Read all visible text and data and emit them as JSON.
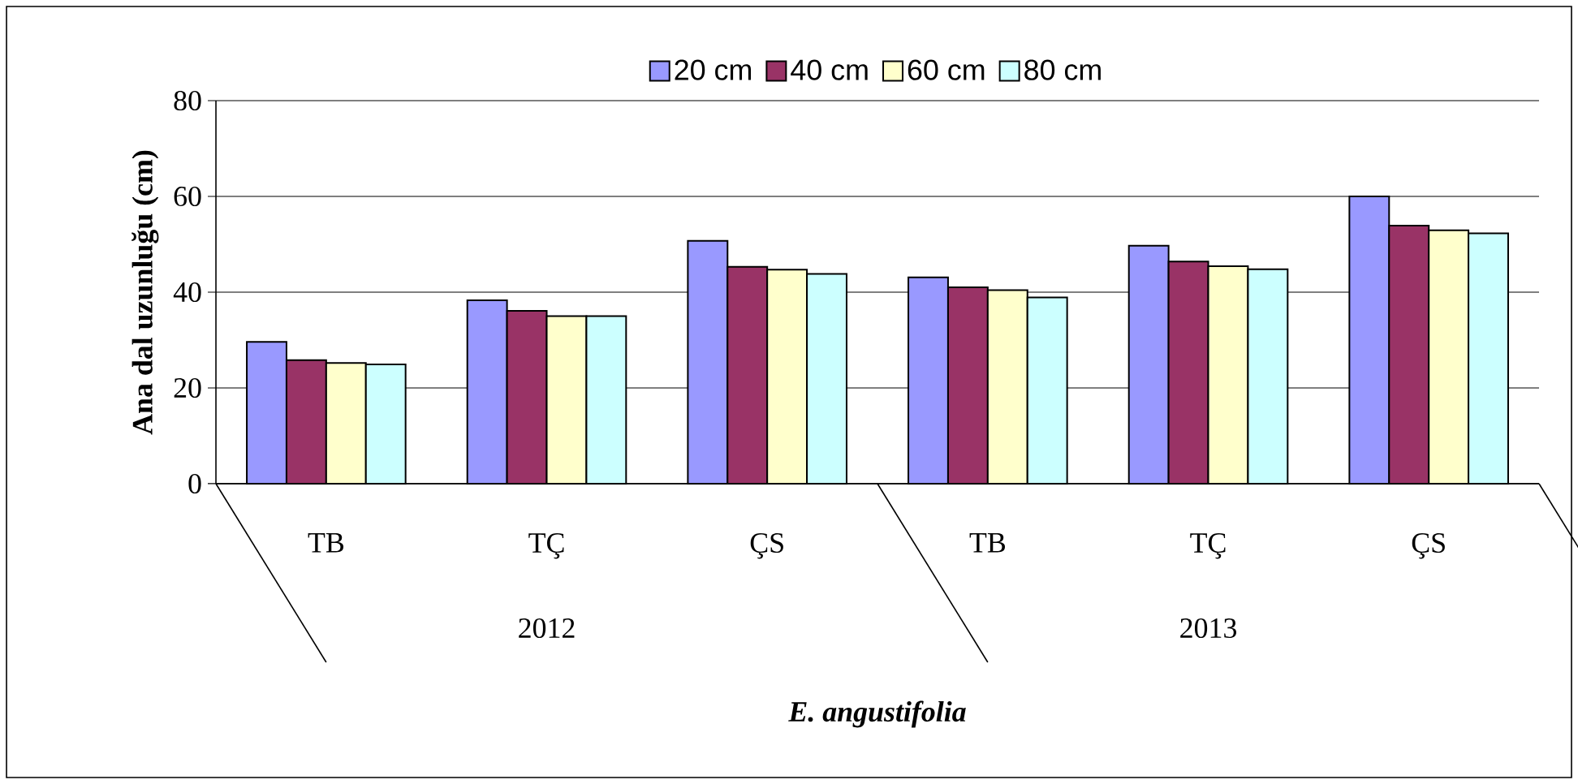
{
  "chart_data": {
    "type": "bar",
    "xlabel": "E. angustifolia",
    "ylabel": "Ana dal uzunluğu (cm)",
    "categories": [
      "TB",
      "TÇ",
      "ÇS",
      "TB",
      "TÇ",
      "ÇS"
    ],
    "annotations": [
      "2012",
      "2013"
    ],
    "series": [
      {
        "name": "20 cm",
        "color": "#9999ff",
        "values": [
          29.6,
          38.3,
          50.7,
          43.1,
          49.7,
          60.0
        ]
      },
      {
        "name": "40 cm",
        "color": "#993366",
        "values": [
          25.8,
          36.1,
          45.3,
          41.0,
          46.4,
          53.9
        ]
      },
      {
        "name": "60 cm",
        "color": "#ffffcc",
        "values": [
          25.2,
          35.0,
          44.7,
          40.4,
          45.4,
          52.9
        ]
      },
      {
        "name": "80 cm",
        "color": "#ccffff",
        "values": [
          24.9,
          35.0,
          43.8,
          38.9,
          44.8,
          52.3
        ]
      }
    ],
    "ylim": [
      0,
      80
    ],
    "yticks": [
      0,
      20,
      40,
      60,
      80
    ],
    "grid": "y",
    "legend": "top"
  }
}
